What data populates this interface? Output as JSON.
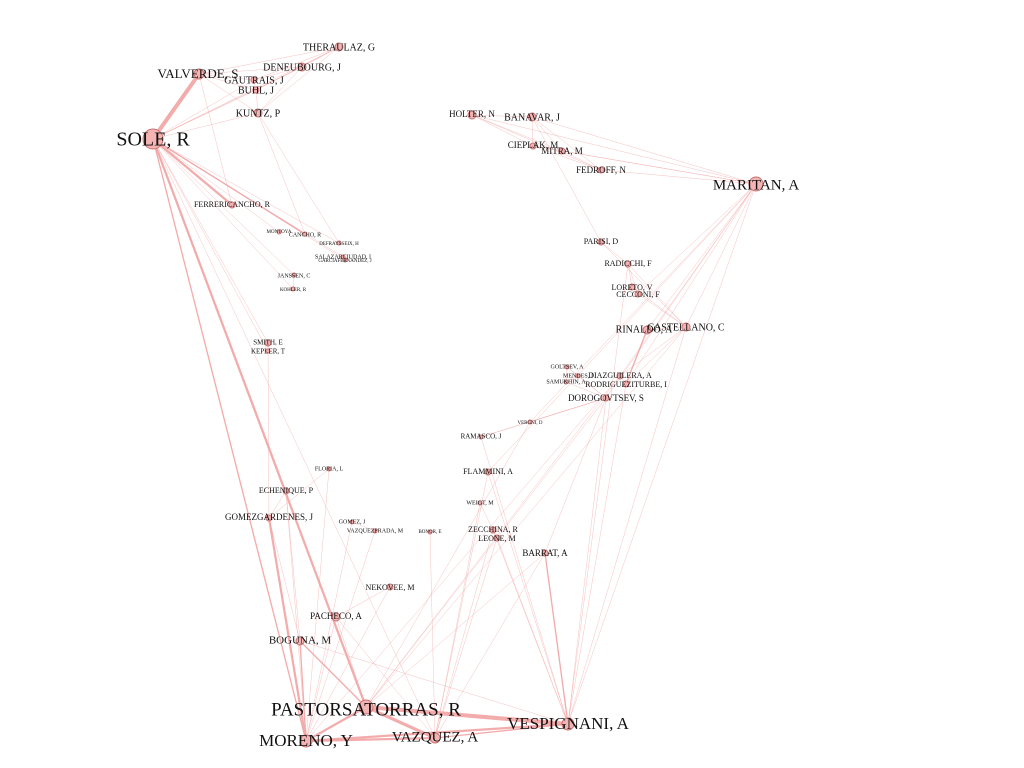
{
  "colors": {
    "edge": "#f2a3a3",
    "node_fill": "#f4b4b4",
    "node_stroke": "#c97070",
    "label": "#111111",
    "background": "#ffffff"
  },
  "nodes": [
    {
      "id": "SOLE",
      "label": "SOLE, R"
    },
    {
      "id": "VALVERDE",
      "label": "VALVERDE, S"
    },
    {
      "id": "THERAULAZ",
      "label": "THERAULAZ, G"
    },
    {
      "id": "DENEUBOURG",
      "label": "DENEUBOURG, J"
    },
    {
      "id": "GAUTRAIS",
      "label": "GAUTRAIS, J"
    },
    {
      "id": "BUHL",
      "label": "BUHL, J"
    },
    {
      "id": "KUNTZ",
      "label": "KUNTZ, P"
    },
    {
      "id": "FERRERICANCHO",
      "label": "FERRERICANCHO, R"
    },
    {
      "id": "MONTOYA",
      "label": "MONTOYA"
    },
    {
      "id": "CANCHO",
      "label": "CANCHO, R"
    },
    {
      "id": "DEFRAYSSEIX",
      "label": "DEFRAYSSEIX, H"
    },
    {
      "id": "SALAZARCIUDAD",
      "label": "SALAZARCIUDAD, I"
    },
    {
      "id": "GARCIAFERNANDEZ",
      "label": "GARCIAFERNANDEZ, J"
    },
    {
      "id": "JANSSEN",
      "label": "JANSSEN, C"
    },
    {
      "id": "KOHLER",
      "label": "KOHLER, R"
    },
    {
      "id": "SMITH",
      "label": "SMITH, E"
    },
    {
      "id": "KEPLER",
      "label": "KEPLER, T"
    },
    {
      "id": "HOLTER",
      "label": "HOLTER, N"
    },
    {
      "id": "BANAVAR",
      "label": "BANAVAR, J"
    },
    {
      "id": "CIEPLAK",
      "label": "CIEPLAK, M"
    },
    {
      "id": "MITRA",
      "label": "MITRA, M"
    },
    {
      "id": "FEDROFF",
      "label": "FEDROFF, N"
    },
    {
      "id": "MARITAN",
      "label": "MARITAN, A"
    },
    {
      "id": "PARISI",
      "label": "PARISI, D"
    },
    {
      "id": "RADICCHI",
      "label": "RADICCHI, F"
    },
    {
      "id": "LORETO",
      "label": "LORETO, V"
    },
    {
      "id": "CECCONI",
      "label": "CECCONI, F"
    },
    {
      "id": "RINALDO",
      "label": "RINALDO, A"
    },
    {
      "id": "CASTELLANO",
      "label": "CASTELLANO, C"
    },
    {
      "id": "GOLTSEV",
      "label": "GOLTSEV, A"
    },
    {
      "id": "MENDES",
      "label": "MENDES, J"
    },
    {
      "id": "DIAZGUILERA",
      "label": "DIAZGUILERA, A"
    },
    {
      "id": "SAMUKHIN",
      "label": "SAMUKHIN, A"
    },
    {
      "id": "RODRIGUEZITURBE",
      "label": "RODRIGUEZITURBE, I"
    },
    {
      "id": "DOROGOVTSEV",
      "label": "DOROGOVTSEV, S"
    },
    {
      "id": "VERGNI",
      "label": "VERGNI, D"
    },
    {
      "id": "RAMASCO",
      "label": "RAMASCO, J"
    },
    {
      "id": "FLAMMINI",
      "label": "FLAMMINI, A"
    },
    {
      "id": "WEIGT",
      "label": "WEIGT, M"
    },
    {
      "id": "ZECCHINA",
      "label": "ZECCHINA, R"
    },
    {
      "id": "LEONE",
      "label": "LEONE, M"
    },
    {
      "id": "BARRAT",
      "label": "BARRAT, A"
    },
    {
      "id": "FLORIA",
      "label": "FLORIA, L"
    },
    {
      "id": "ECHENIQUE",
      "label": "ECHENIQUE, P"
    },
    {
      "id": "GOMEZGARDENES",
      "label": "GOMEZGARDENES, J"
    },
    {
      "id": "GOMEZ",
      "label": "GOMEZ, J"
    },
    {
      "id": "VAZQUEZPRADA",
      "label": "VAZQUEZPRADA, M"
    },
    {
      "id": "BONOR",
      "label": "BONOR, E"
    },
    {
      "id": "NEKOVEE",
      "label": "NEKOVEE, M"
    },
    {
      "id": "PACHECO",
      "label": "PACHECO, A"
    },
    {
      "id": "BOGUNA",
      "label": "BOGUNA, M"
    },
    {
      "id": "PASTORSATORRAS",
      "label": "PASTORSATORRAS, R"
    },
    {
      "id": "MORENO",
      "label": "MORENO, Y"
    },
    {
      "id": "VAZQUEZ",
      "label": "VAZQUEZ, A"
    },
    {
      "id": "VESPIGNANI",
      "label": "VESPIGNANI, A"
    }
  ],
  "edges": [
    [
      "SOLE",
      "VALVERDE",
      5
    ],
    [
      "SOLE",
      "THERAULAZ",
      1
    ],
    [
      "SOLE",
      "DENEUBOURG",
      1
    ],
    [
      "SOLE",
      "GAUTRAIS",
      1
    ],
    [
      "SOLE",
      "BUHL",
      1
    ],
    [
      "SOLE",
      "KUNTZ",
      1
    ],
    [
      "VALVERDE",
      "THERAULAZ",
      1
    ],
    [
      "VALVERDE",
      "DENEUBOURG",
      1
    ],
    [
      "VALVERDE",
      "GAUTRAIS",
      1
    ],
    [
      "VALVERDE",
      "BUHL",
      1
    ],
    [
      "VALVERDE",
      "KUNTZ",
      1
    ],
    [
      "THERAULAZ",
      "DENEUBOURG",
      1
    ],
    [
      "THERAULAZ",
      "GAUTRAIS",
      1
    ],
    [
      "THERAULAZ",
      "BUHL",
      1
    ],
    [
      "DENEUBOURG",
      "GAUTRAIS",
      1
    ],
    [
      "DENEUBOURG",
      "BUHL",
      1
    ],
    [
      "GAUTRAIS",
      "BUHL",
      1
    ],
    [
      "KUNTZ",
      "BUHL",
      1
    ],
    [
      "KUNTZ",
      "THERAULAZ",
      1
    ],
    [
      "KUNTZ",
      "DENEUBOURG",
      1
    ],
    [
      "VALVERDE",
      "FERRERICANCHO",
      1
    ],
    [
      "SOLE",
      "FERRERICANCHO",
      3
    ],
    [
      "SOLE",
      "CANCHO",
      2
    ],
    [
      "SOLE",
      "MONTOYA",
      1
    ],
    [
      "SOLE",
      "DEFRAYSSEIX",
      1
    ],
    [
      "SOLE",
      "SALAZARCIUDAD",
      1
    ],
    [
      "SOLE",
      "GARCIAFERNANDEZ",
      1
    ],
    [
      "SOLE",
      "JANSSEN",
      1
    ],
    [
      "SOLE",
      "KOHLER",
      1
    ],
    [
      "SOLE",
      "SMITH",
      1
    ],
    [
      "SOLE",
      "KEPLER",
      1
    ],
    [
      "KUNTZ",
      "DEFRAYSSEIX",
      1
    ],
    [
      "KUNTZ",
      "CANCHO",
      1
    ],
    [
      "SALAZARCIUDAD",
      "GARCIAFERNANDEZ",
      1
    ],
    [
      "JANSSEN",
      "KOHLER",
      1
    ],
    [
      "SMITH",
      "KEPLER",
      1
    ],
    [
      "SOLE",
      "PASTORSATORRAS",
      3
    ],
    [
      "SOLE",
      "ECHENIQUE",
      1
    ],
    [
      "SOLE",
      "MORENO",
      2
    ],
    [
      "SOLE",
      "VAZQUEZ",
      1
    ],
    [
      "SMITH",
      "GOMEZGARDENES",
      1
    ],
    [
      "HOLTER",
      "BANAVAR",
      1
    ],
    [
      "HOLTER",
      "CIEPLAK",
      1
    ],
    [
      "HOLTER",
      "MITRA",
      1
    ],
    [
      "HOLTER",
      "FEDROFF",
      1
    ],
    [
      "HOLTER",
      "MARITAN",
      1
    ],
    [
      "BANAVAR",
      "CIEPLAK",
      1
    ],
    [
      "BANAVAR",
      "MITRA",
      1
    ],
    [
      "BANAVAR",
      "FEDROFF",
      1
    ],
    [
      "BANAVAR",
      "MARITAN",
      1
    ],
    [
      "BANAVAR",
      "PARISI",
      1
    ],
    [
      "CIEPLAK",
      "MITRA",
      1
    ],
    [
      "CIEPLAK",
      "FEDROFF",
      1
    ],
    [
      "CIEPLAK",
      "MARITAN",
      1
    ],
    [
      "MITRA",
      "FEDROFF",
      1
    ],
    [
      "MITRA",
      "MARITAN",
      1
    ],
    [
      "FEDROFF",
      "MARITAN",
      1
    ],
    [
      "MARITAN",
      "CASTELLANO",
      1
    ],
    [
      "MARITAN",
      "RINALDO",
      1
    ],
    [
      "MARITAN",
      "RODRIGUEZITURBE",
      1
    ],
    [
      "MARITAN",
      "DIAZGUILERA",
      1
    ],
    [
      "MARITAN",
      "DOROGOVTSEV",
      1
    ],
    [
      "MARITAN",
      "CECCONI",
      1
    ],
    [
      "MARITAN",
      "VESPIGNANI",
      1
    ],
    [
      "MARITAN",
      "FLAMMINI",
      1
    ],
    [
      "MARITAN",
      "VERGNI",
      1
    ],
    [
      "PARISI",
      "RADICCHI",
      1
    ],
    [
      "PARISI",
      "CASTELLANO",
      1
    ],
    [
      "RADICCHI",
      "LORETO",
      1
    ],
    [
      "RADICCHI",
      "CECCONI",
      1
    ],
    [
      "RADICCHI",
      "CASTELLANO",
      1
    ],
    [
      "LORETO",
      "CECCONI",
      1
    ],
    [
      "LORETO",
      "CASTELLANO",
      1
    ],
    [
      "CECCONI",
      "CASTELLANO",
      1
    ],
    [
      "RINALDO",
      "CASTELLANO",
      1
    ],
    [
      "RINALDO",
      "RODRIGUEZITURBE",
      2
    ],
    [
      "CASTELLANO",
      "DIAZGUILERA",
      1
    ],
    [
      "CASTELLANO",
      "RODRIGUEZITURBE",
      1
    ],
    [
      "CASTELLANO",
      "VESPIGNANI",
      1
    ],
    [
      "GOLTSEV",
      "MENDES",
      1
    ],
    [
      "GOLTSEV",
      "SAMUKHIN",
      1
    ],
    [
      "GOLTSEV",
      "DOROGOVTSEV",
      1
    ],
    [
      "MENDES",
      "SAMUKHIN",
      1
    ],
    [
      "MENDES",
      "DOROGOVTSEV",
      1
    ],
    [
      "SAMUKHIN",
      "DOROGOVTSEV",
      1
    ],
    [
      "DIAZGUILERA",
      "RODRIGUEZITURBE",
      1
    ],
    [
      "DOROGOVTSEV",
      "VERGNI",
      1
    ],
    [
      "DOROGOVTSEV",
      "VESPIGNANI",
      1
    ],
    [
      "DOROGOVTSEV",
      "BARRAT",
      1
    ],
    [
      "DOROGOVTSEV",
      "RAMASCO",
      1
    ],
    [
      "DOROGOVTSEV",
      "PASTORSATORRAS",
      1
    ],
    [
      "VERGNI",
      "PASTORSATORRAS",
      1
    ],
    [
      "RAMASCO",
      "DOROGOVTSEV",
      1
    ],
    [
      "RAMASCO",
      "VESPIGNANI",
      1
    ],
    [
      "FLAMMINI",
      "VESPIGNANI",
      1
    ],
    [
      "FLAMMINI",
      "VAZQUEZ",
      1
    ],
    [
      "WEIGT",
      "ZECCHINA",
      1
    ],
    [
      "WEIGT",
      "VAZQUEZ",
      1
    ],
    [
      "ZECCHINA",
      "LEONE",
      1
    ],
    [
      "ZECCHINA",
      "VAZQUEZ",
      1
    ],
    [
      "ZECCHINA",
      "VESPIGNANI",
      1
    ],
    [
      "LEONE",
      "VESPIGNANI",
      1
    ],
    [
      "LEONE",
      "VAZQUEZ",
      1
    ],
    [
      "BARRAT",
      "VESPIGNANI",
      2
    ],
    [
      "BARRAT",
      "PASTORSATORRAS",
      1
    ],
    [
      "BARRAT",
      "VAZQUEZ",
      1
    ],
    [
      "FLORIA",
      "MORENO",
      1
    ],
    [
      "FLORIA",
      "GOMEZGARDENES",
      1
    ],
    [
      "ECHENIQUE",
      "GOMEZGARDENES",
      1
    ],
    [
      "ECHENIQUE",
      "MORENO",
      1
    ],
    [
      "GOMEZGARDENES",
      "MORENO",
      3
    ],
    [
      "GOMEZGARDENES",
      "BOGUNA",
      1
    ],
    [
      "GOMEZ",
      "MORENO",
      1
    ],
    [
      "VAZQUEZPRADA",
      "MORENO",
      1
    ],
    [
      "GOMEZ",
      "VAZQUEZPRADA",
      1
    ],
    [
      "BONOR",
      "VAZQUEZ",
      1
    ],
    [
      "NEKOVEE",
      "MORENO",
      1
    ],
    [
      "NEKOVEE",
      "PACHECO",
      1
    ],
    [
      "PACHECO",
      "MORENO",
      1
    ],
    [
      "PACHECO",
      "VAZQUEZ",
      1
    ],
    [
      "BOGUNA",
      "PASTORSATORRAS",
      2
    ],
    [
      "BOGUNA",
      "MORENO",
      2
    ],
    [
      "BOGUNA",
      "VESPIGNANI",
      1
    ],
    [
      "PASTORSATORRAS",
      "MORENO",
      3
    ],
    [
      "PASTORSATORRAS",
      "VAZQUEZ",
      4
    ],
    [
      "PASTORSATORRAS",
      "VESPIGNANI",
      5
    ],
    [
      "MORENO",
      "VAZQUEZ",
      3
    ],
    [
      "MORENO",
      "VESPIGNANI",
      3
    ],
    [
      "VAZQUEZ",
      "VESPIGNANI",
      2
    ],
    [
      "RODRIGUEZITURBE",
      "VESPIGNANI",
      1
    ],
    [
      "DIAZGUILERA",
      "PASTORSATORRAS",
      1
    ],
    [
      "CASTELLANO",
      "PASTORSATORRAS",
      1
    ],
    [
      "DIAZGUILERA",
      "MORENO",
      1
    ],
    [
      "RADICCHI",
      "VESPIGNANI",
      1
    ],
    [
      "ECHENIQUE",
      "BOGUNA",
      1
    ],
    [
      "PACHECO",
      "PASTORSATORRAS",
      1
    ]
  ]
}
